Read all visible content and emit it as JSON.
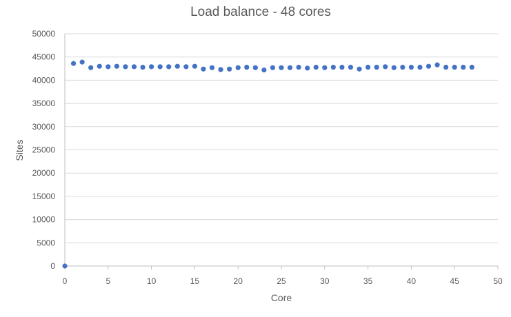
{
  "chart_data": {
    "type": "scatter",
    "title": "Load balance - 48 cores",
    "xlabel": "Core",
    "ylabel": "Sites",
    "xlim": [
      0,
      50
    ],
    "ylim": [
      0,
      50000
    ],
    "x_ticks": [
      "0",
      "5",
      "10",
      "15",
      "20",
      "25",
      "30",
      "35",
      "40",
      "45",
      "50"
    ],
    "y_ticks": [
      "0",
      "5000",
      "10000",
      "15000",
      "20000",
      "25000",
      "30000",
      "35000",
      "40000",
      "45000",
      "50000"
    ],
    "grid": true,
    "legend": "none",
    "marker_color": "#4472c4",
    "series": [
      {
        "x": [
          0,
          1,
          2,
          3,
          4,
          5,
          6,
          7,
          8,
          9,
          10,
          11,
          12,
          13,
          14,
          15,
          16,
          17,
          18,
          19,
          20,
          21,
          22,
          23,
          24,
          25,
          26,
          27,
          28,
          29,
          30,
          31,
          32,
          33,
          34,
          35,
          36,
          37,
          38,
          39,
          40,
          41,
          42,
          43,
          44,
          45,
          46,
          47
        ],
        "y": [
          0,
          43600,
          43900,
          42700,
          43000,
          42900,
          43000,
          42900,
          42900,
          42800,
          42900,
          42900,
          42900,
          43000,
          42900,
          43000,
          42400,
          42700,
          42300,
          42400,
          42700,
          42800,
          42700,
          42200,
          42700,
          42700,
          42700,
          42800,
          42600,
          42800,
          42700,
          42800,
          42800,
          42800,
          42400,
          42800,
          42800,
          42900,
          42700,
          42800,
          42800,
          42800,
          43000,
          43300,
          42800,
          42800,
          42800,
          42800
        ]
      }
    ]
  }
}
